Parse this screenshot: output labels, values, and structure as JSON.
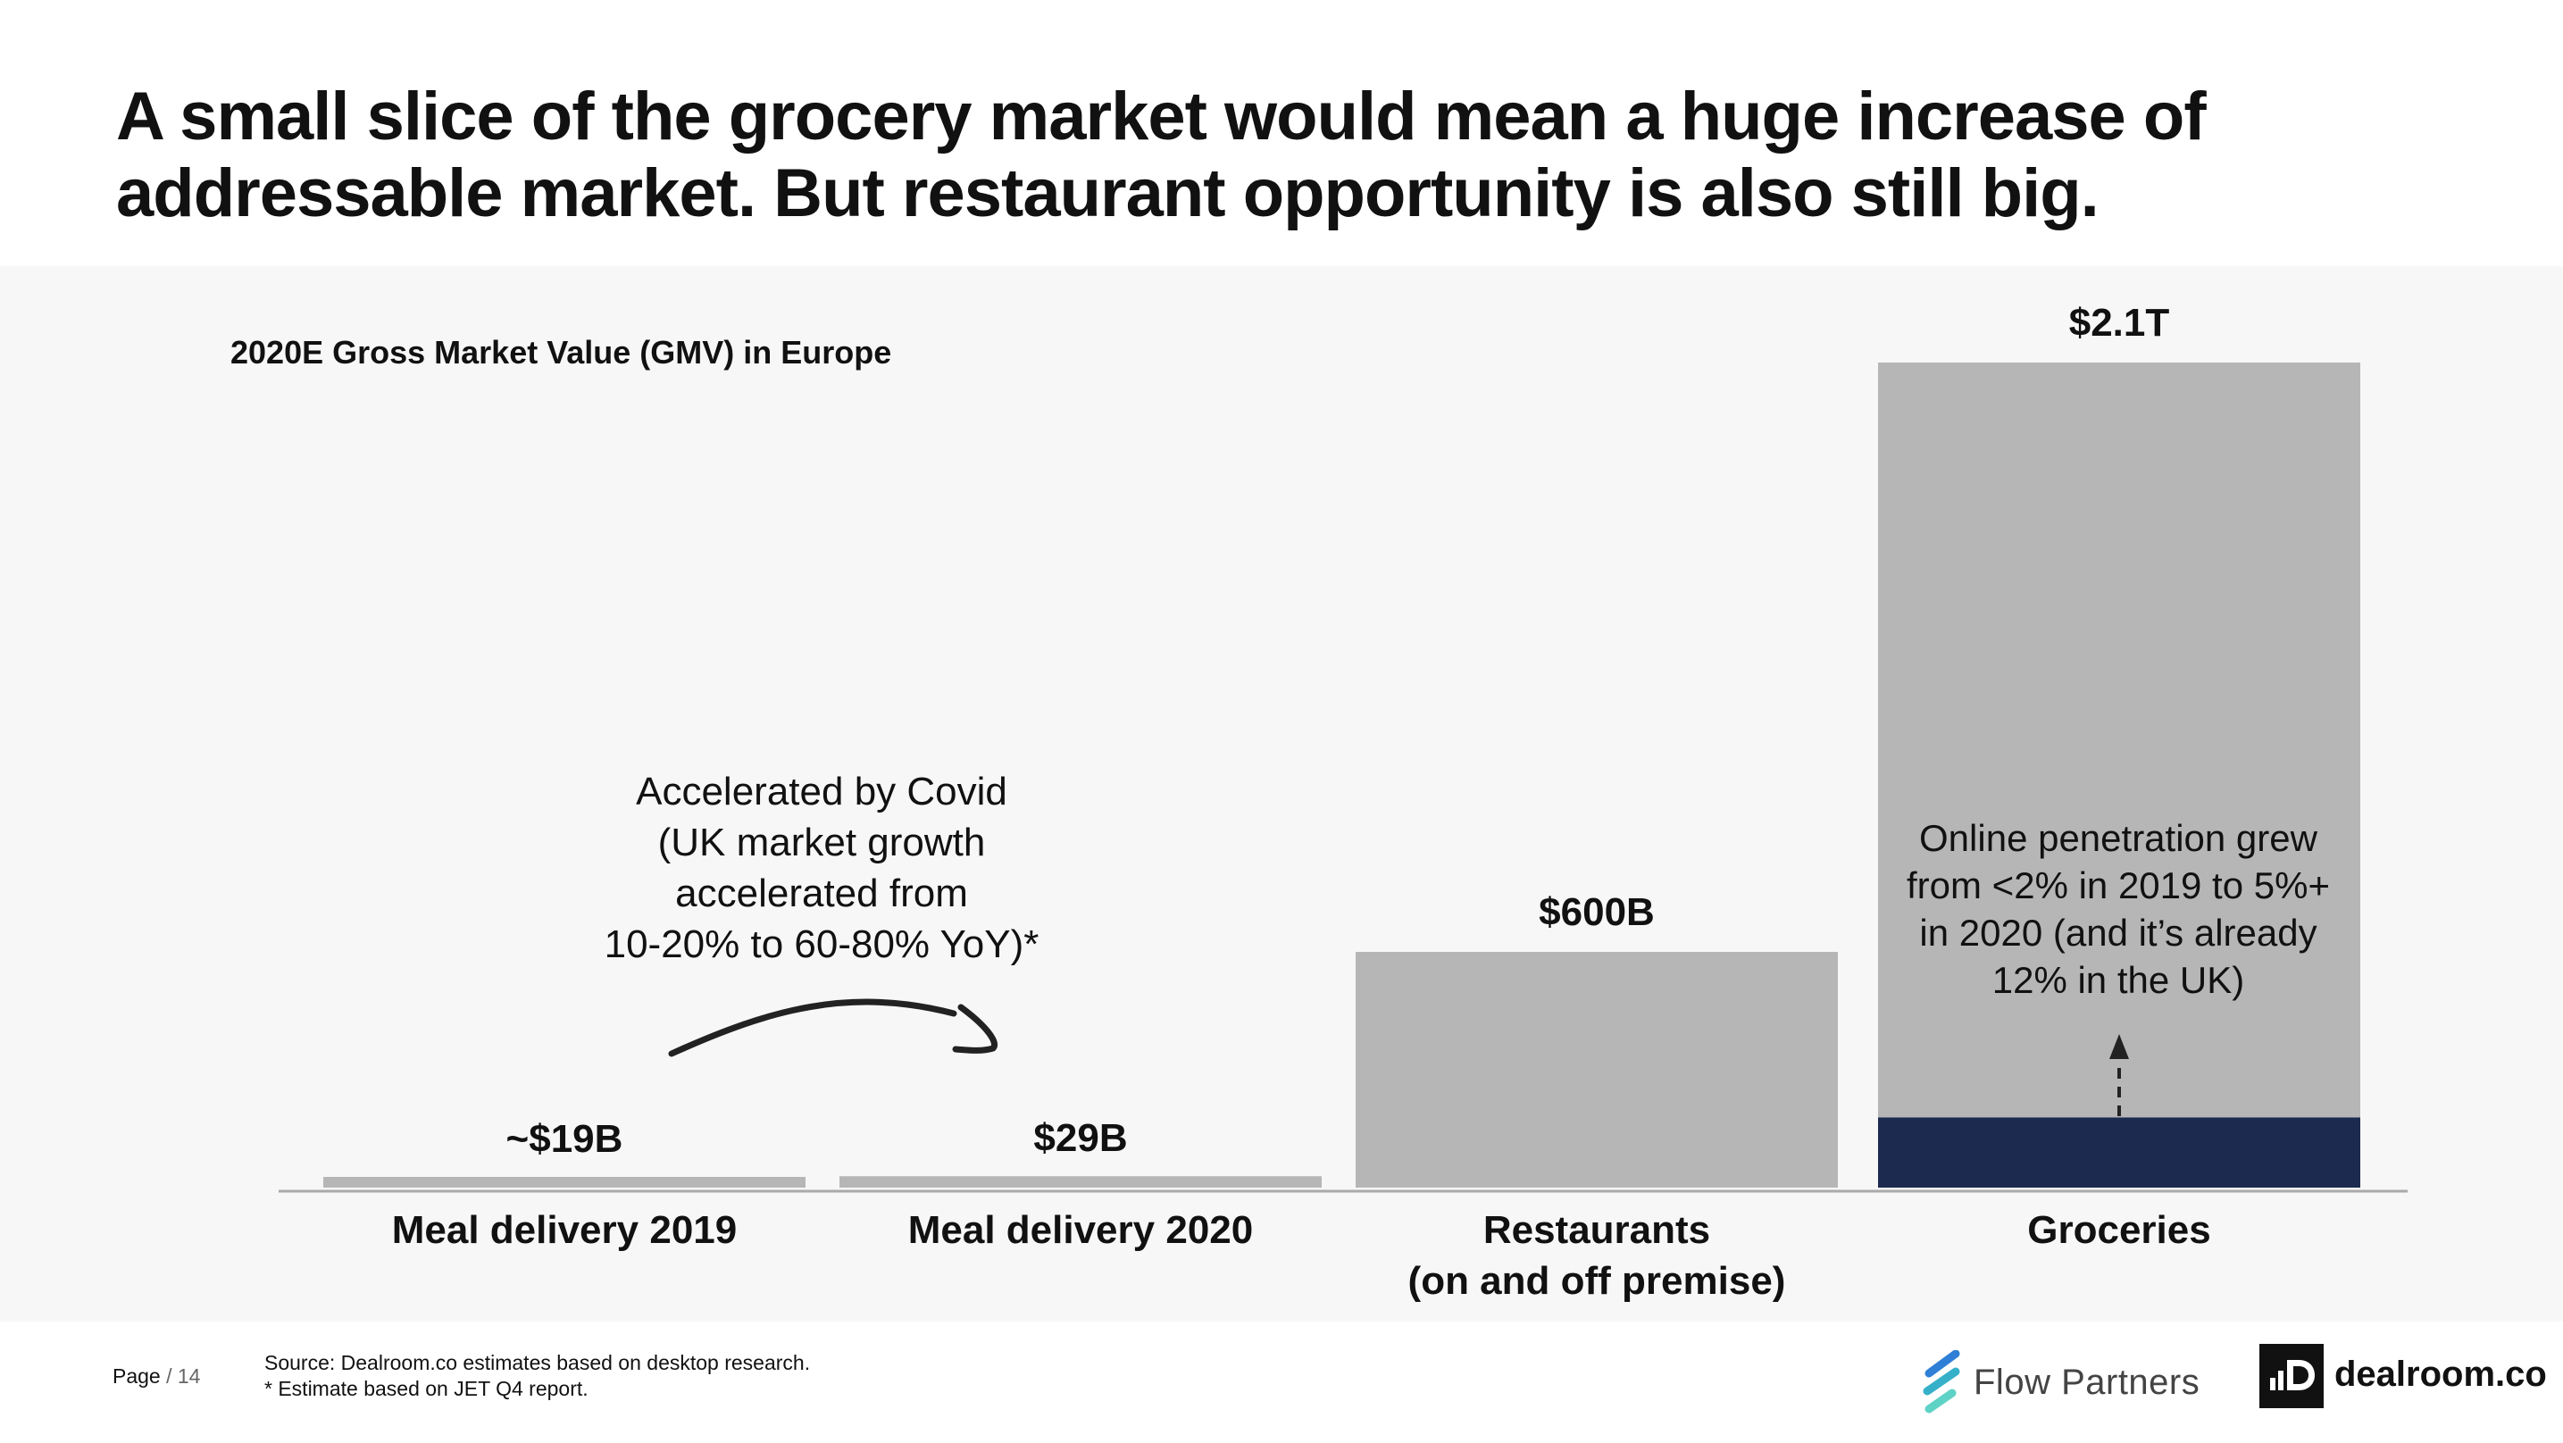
{
  "headline": {
    "line1": "A small slice of the grocery market would mean a huge increase of",
    "line2": "addressable market. But restaurant opportunity is also still big."
  },
  "chart_data": {
    "type": "bar",
    "title": "2020E Gross Market Value (GMV) in Europe",
    "xlabel": "",
    "ylabel": "",
    "unit": "USD",
    "categories": [
      "Meal delivery 2019",
      "Meal delivery 2020",
      "Restaurants\n(on and off premise)",
      "Groceries"
    ],
    "values": [
      19,
      29,
      600,
      2100
    ],
    "value_scale": "billions",
    "data_labels": [
      "~$19B",
      "$29B",
      "$600B",
      "$2.1T"
    ],
    "ylim": [
      0,
      2100
    ],
    "grid": false,
    "legend": "none",
    "online_share_of_groceries": 0.085,
    "annotations": [
      "Accelerated by Covid\n(UK market growth\naccelerated from\n10-20% to 60-80% YoY)*",
      "Online penetration grew\nfrom <2% in 2019 to 5%+\nin 2020 (and it’s already\n12% in the UK)"
    ],
    "colors": {
      "bar": "#b6b6b6",
      "online_segment": "#1b2a4e",
      "axis": "#aaaaaa",
      "arrow": "#222222"
    }
  },
  "footer": {
    "page_word": "Page",
    "page_sep": "/",
    "page_number": "14",
    "source": "Source: Dealroom.co estimates based on desktop research.",
    "note": "* Estimate based on JET Q4 report."
  },
  "logos": {
    "flow_partners": "Flow Partners",
    "dealroom": "dealroom.co",
    "flow_icon": "flow-partners-stripes-icon",
    "dealroom_icon": "dealroom-d-icon",
    "flow_colors": [
      "#2f7fd6",
      "#36b0c9",
      "#5fd2c6"
    ]
  }
}
